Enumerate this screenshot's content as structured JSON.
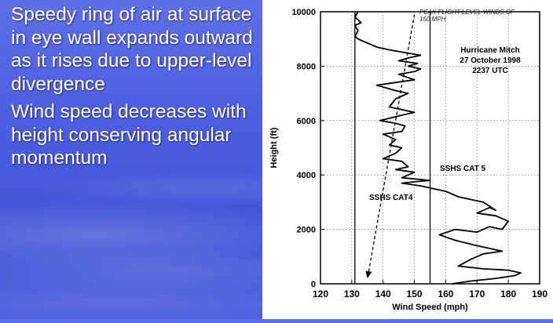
{
  "slide": {
    "bullets": [
      "Speedy ring of air at surface in eye wall expands outward as it rises due to upper-level divergence",
      "Wind speed decreases with height conserving angular momentum"
    ]
  },
  "colors": {
    "background": "#4d5fe0",
    "text": "#ffffff",
    "plot_line": "#000000"
  },
  "chart_data": {
    "type": "line",
    "xlabel": "Wind Speed (mph)",
    "ylabel": "Height (ft)",
    "xlim": [
      120,
      190
    ],
    "ylim": [
      0,
      10000
    ],
    "x_ticks": [
      "120",
      "130",
      "140",
      "150",
      "160",
      "170",
      "180",
      "190"
    ],
    "y_ticks": [
      "0",
      "2000",
      "4000",
      "6000",
      "8000",
      "10000"
    ],
    "grid": "dotted",
    "annotations": {
      "peak_winds": "PEAK FLIGHT-LEVEL WINDS OF 150 MPH",
      "storm_name": "Hurricane Mitch",
      "storm_date": "27 October 1998",
      "storm_time": "2237 UTC",
      "cat5": "SSHS CAT 5",
      "cat4": "SSHS CAT4"
    },
    "reference_lines": [
      {
        "label": "SSHS CAT4",
        "x": 131
      },
      {
        "label": "SSHS CAT 5",
        "x": 155
      }
    ],
    "peak_arrow": {
      "from": [
        150,
        9900
      ],
      "to": [
        135,
        200
      ]
    },
    "series": [
      {
        "x": [
          162,
          168,
          176,
          182,
          184,
          180,
          172,
          164,
          168,
          172,
          178,
          170,
          163,
          158,
          163,
          170,
          174,
          178,
          180,
          176,
          170,
          174,
          176,
          172,
          164,
          160,
          156,
          152,
          146,
          150,
          155,
          146,
          150,
          144,
          148,
          146,
          140,
          144,
          146,
          142,
          144,
          140,
          146,
          147,
          144,
          139,
          146,
          150,
          142,
          144,
          148,
          144,
          138,
          144,
          150,
          145,
          150,
          152,
          148,
          151,
          145,
          148,
          152,
          147,
          142,
          138,
          136,
          134,
          132,
          131,
          132,
          131,
          133,
          131,
          132
        ],
        "y": [
          0,
          100,
          200,
          300,
          400,
          500,
          550,
          650,
          900,
          1100,
          1200,
          1400,
          1600,
          1800,
          2000,
          1900,
          2100,
          2000,
          2300,
          2500,
          2600,
          2800,
          2700,
          3000,
          3200,
          3400,
          3500,
          3600,
          3700,
          3750,
          3800,
          3900,
          4100,
          4200,
          4300,
          4500,
          4600,
          4800,
          5000,
          5100,
          5300,
          5500,
          5600,
          5800,
          5900,
          6000,
          6200,
          6300,
          6500,
          6800,
          7000,
          7100,
          7300,
          7400,
          7500,
          7700,
          7800,
          7900,
          8000,
          8100,
          8200,
          8300,
          8400,
          8500,
          8600,
          8700,
          8800,
          8900,
          9000,
          9100,
          9300,
          9500,
          9600,
          9800,
          10000
        ]
      }
    ]
  }
}
